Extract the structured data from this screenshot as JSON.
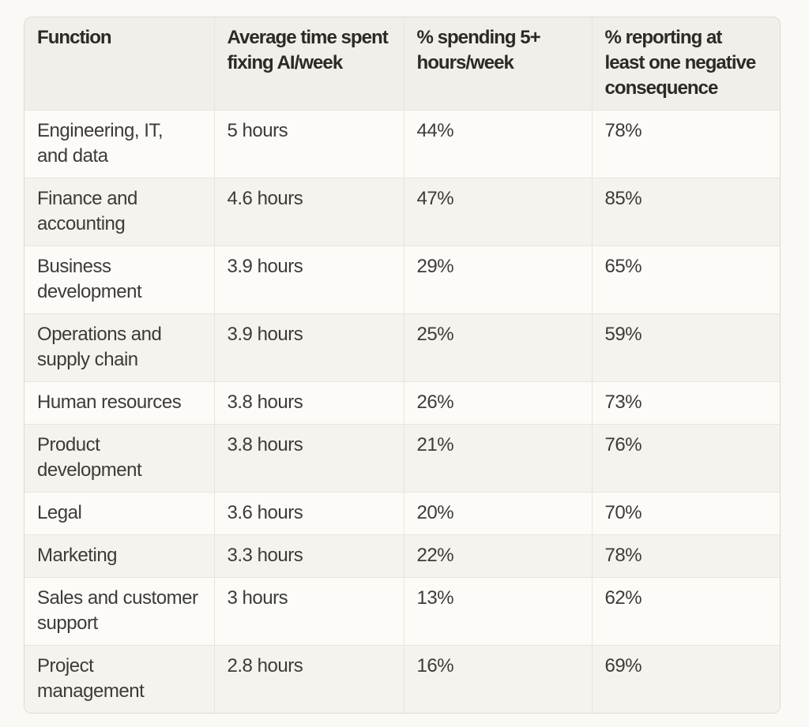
{
  "colors": {
    "page_background": "#FAF9F5",
    "header_background": "#F0EFE9",
    "row_background": "#FCFBF7",
    "row_stripe_background": "#F4F3ED",
    "border": "#E7E5DE",
    "header_text": "#2B2A26",
    "body_text": "#3C3B38"
  },
  "table": {
    "columns": [
      {
        "id": "function",
        "label": "Function"
      },
      {
        "id": "avg_time",
        "label": "Average time spent\nfixing AI/week"
      },
      {
        "id": "pct_5plus",
        "label": "% spending 5+\nhours/week"
      },
      {
        "id": "pct_negative",
        "label": "% reporting at\nleast one negative\nconsequence"
      }
    ],
    "rows": [
      {
        "function": "Engineering, IT,\nand data",
        "avg_time": "5 hours",
        "pct_5plus": "44%",
        "pct_negative": "78%"
      },
      {
        "function": "Finance and\naccounting",
        "avg_time": "4.6 hours",
        "pct_5plus": "47%",
        "pct_negative": "85%"
      },
      {
        "function": "Business\ndevelopment",
        "avg_time": "3.9 hours",
        "pct_5plus": "29%",
        "pct_negative": "65%"
      },
      {
        "function": "Operations and\nsupply chain",
        "avg_time": "3.9 hours",
        "pct_5plus": "25%",
        "pct_negative": "59%"
      },
      {
        "function": "Human resources",
        "avg_time": "3.8 hours",
        "pct_5plus": "26%",
        "pct_negative": "73%"
      },
      {
        "function": "Product\ndevelopment",
        "avg_time": "3.8 hours",
        "pct_5plus": "21%",
        "pct_negative": "76%"
      },
      {
        "function": "Legal",
        "avg_time": "3.6 hours",
        "pct_5plus": "20%",
        "pct_negative": "70%"
      },
      {
        "function": "Marketing",
        "avg_time": "3.3 hours",
        "pct_5plus": "22%",
        "pct_negative": "78%"
      },
      {
        "function": "Sales and customer\nsupport",
        "avg_time": "3 hours",
        "pct_5plus": "13%",
        "pct_negative": "62%"
      },
      {
        "function": "Project\nmanagement",
        "avg_time": "2.8 hours",
        "pct_5plus": "16%",
        "pct_negative": "69%"
      }
    ]
  },
  "chart_data": {
    "type": "table",
    "title": "",
    "columns": [
      "Function",
      "Average time spent fixing AI/week",
      "% spending 5+ hours/week",
      "% reporting at least one negative consequence"
    ],
    "rows": [
      {
        "function": "Engineering, IT, and data",
        "avg_hours_fixing_ai_per_week": 5.0,
        "pct_spending_5plus_hours_week": 44,
        "pct_reporting_negative_consequence": 78
      },
      {
        "function": "Finance and accounting",
        "avg_hours_fixing_ai_per_week": 4.6,
        "pct_spending_5plus_hours_week": 47,
        "pct_reporting_negative_consequence": 85
      },
      {
        "function": "Business development",
        "avg_hours_fixing_ai_per_week": 3.9,
        "pct_spending_5plus_hours_week": 29,
        "pct_reporting_negative_consequence": 65
      },
      {
        "function": "Operations and supply chain",
        "avg_hours_fixing_ai_per_week": 3.9,
        "pct_spending_5plus_hours_week": 25,
        "pct_reporting_negative_consequence": 59
      },
      {
        "function": "Human resources",
        "avg_hours_fixing_ai_per_week": 3.8,
        "pct_spending_5plus_hours_week": 26,
        "pct_reporting_negative_consequence": 73
      },
      {
        "function": "Product development",
        "avg_hours_fixing_ai_per_week": 3.8,
        "pct_spending_5plus_hours_week": 21,
        "pct_reporting_negative_consequence": 76
      },
      {
        "function": "Legal",
        "avg_hours_fixing_ai_per_week": 3.6,
        "pct_spending_5plus_hours_week": 20,
        "pct_reporting_negative_consequence": 70
      },
      {
        "function": "Marketing",
        "avg_hours_fixing_ai_per_week": 3.3,
        "pct_spending_5plus_hours_week": 22,
        "pct_reporting_negative_consequence": 78
      },
      {
        "function": "Sales and customer support",
        "avg_hours_fixing_ai_per_week": 3.0,
        "pct_spending_5plus_hours_week": 13,
        "pct_reporting_negative_consequence": 62
      },
      {
        "function": "Project management",
        "avg_hours_fixing_ai_per_week": 2.8,
        "pct_spending_5plus_hours_week": 16,
        "pct_reporting_negative_consequence": 69
      }
    ],
    "layout": {
      "striped_rows": true,
      "header_row": true,
      "sorted_by": "avg_hours_fixing_ai_per_week desc"
    }
  }
}
